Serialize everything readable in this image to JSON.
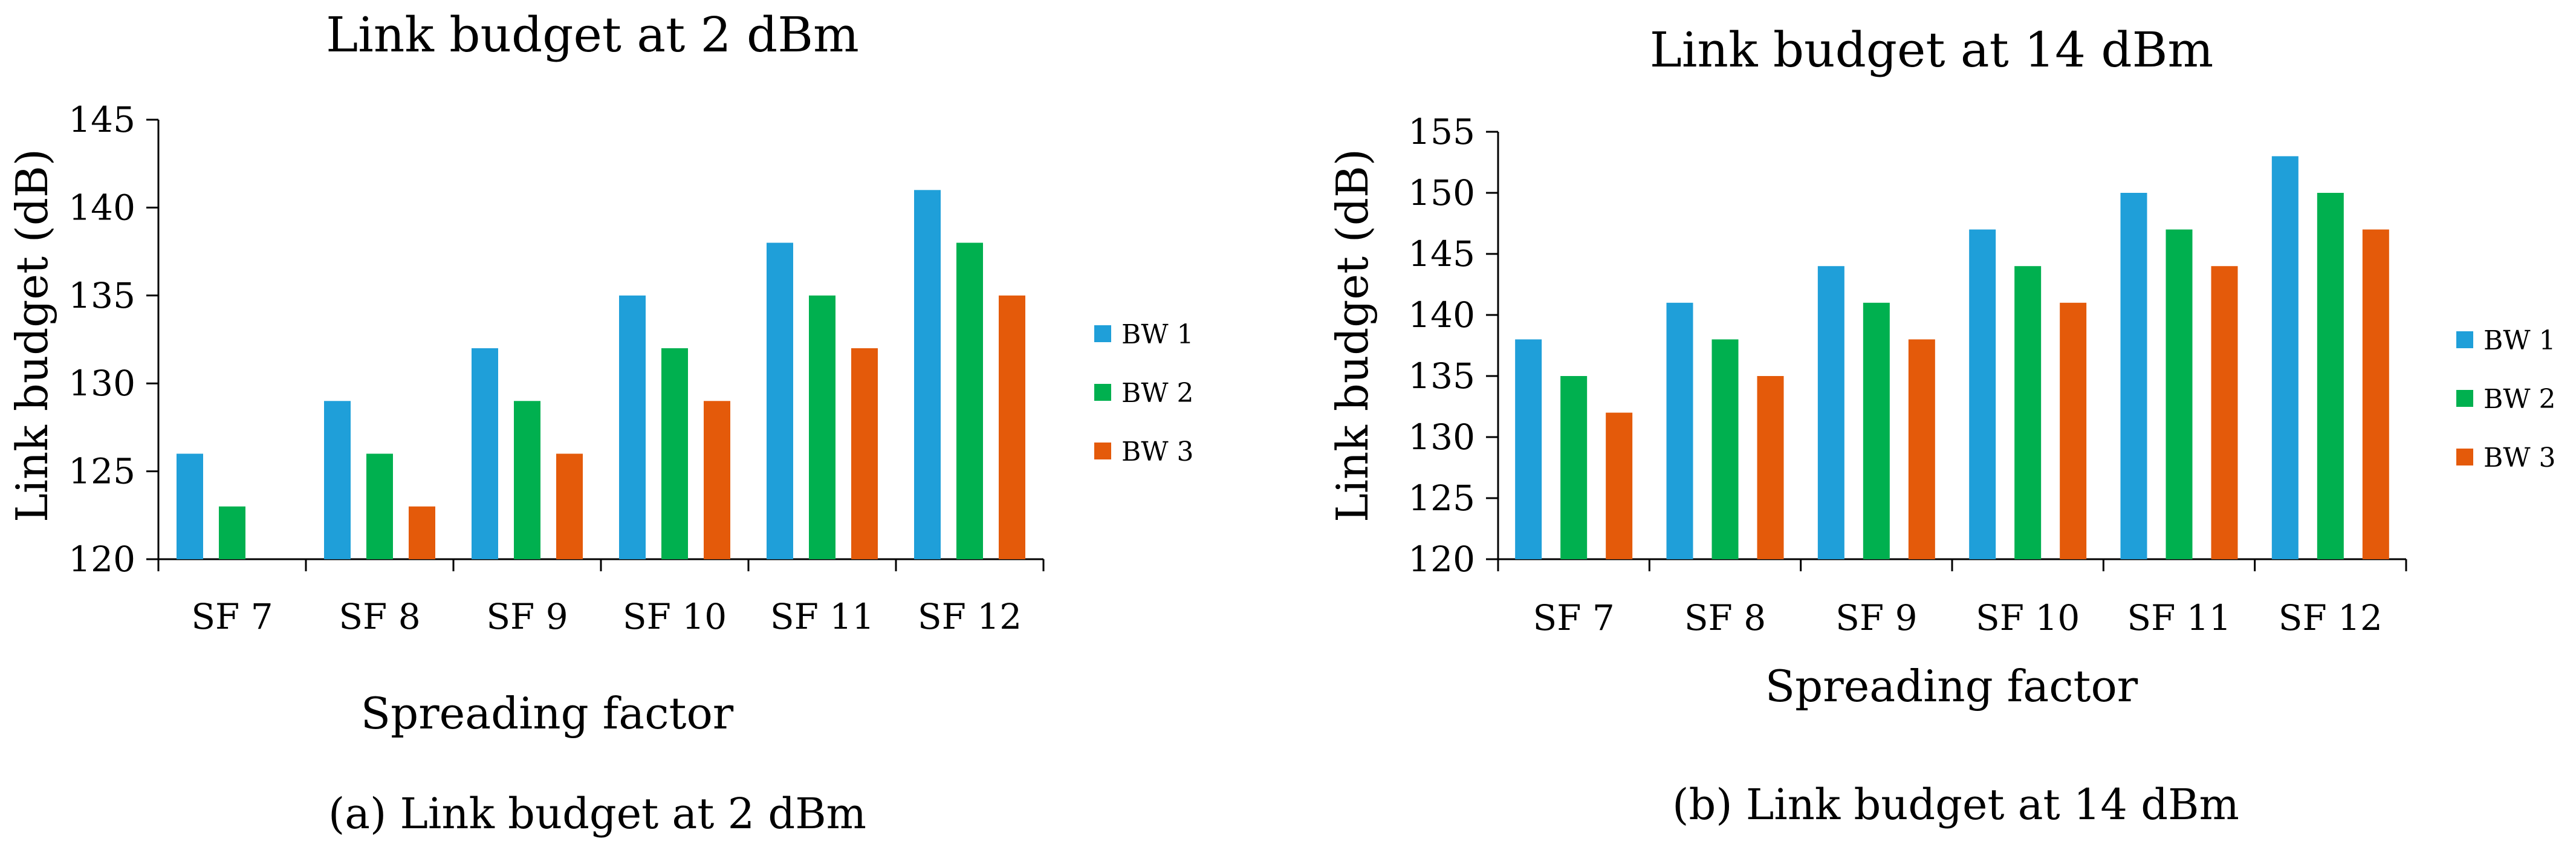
{
  "colors": {
    "BW 1": "#1F9FD9",
    "BW 2": "#00B04F",
    "BW 3": "#E45A0A"
  },
  "chart_data": [
    {
      "type": "bar",
      "title": "Link budget at 2 dBm",
      "caption": "(a) Link budget at 2 dBm",
      "xlabel": "Spreading factor",
      "ylabel": "Link budget (dB)",
      "ylim": [
        120,
        145
      ],
      "yticks": [
        120,
        125,
        130,
        135,
        140,
        145
      ],
      "grid": false,
      "legend_position": "right",
      "categories": [
        "SF 7",
        "SF 8",
        "SF 9",
        "SF 10",
        "SF 11",
        "SF 12"
      ],
      "series": [
        {
          "name": "BW 1",
          "values": [
            126,
            129,
            132,
            135,
            138,
            141
          ]
        },
        {
          "name": "BW 2",
          "values": [
            123,
            126,
            129,
            132,
            135,
            138
          ]
        },
        {
          "name": "BW 3",
          "values": [
            120,
            123,
            126,
            129,
            132,
            135
          ]
        }
      ]
    },
    {
      "type": "bar",
      "title": "Link budget at 14 dBm",
      "caption": "(b) Link budget at 14 dBm",
      "xlabel": "Spreading factor",
      "ylabel": "Link budget (dB)",
      "ylim": [
        120,
        155
      ],
      "yticks": [
        120,
        125,
        130,
        135,
        140,
        145,
        150,
        155
      ],
      "grid": false,
      "legend_position": "right",
      "categories": [
        "SF 7",
        "SF 8",
        "SF 9",
        "SF 10",
        "SF 11",
        "SF 12"
      ],
      "series": [
        {
          "name": "BW 1",
          "values": [
            138,
            141,
            144,
            147,
            150,
            153
          ]
        },
        {
          "name": "BW 2",
          "values": [
            135,
            138,
            141,
            144,
            147,
            150
          ]
        },
        {
          "name": "BW 3",
          "values": [
            132,
            135,
            138,
            141,
            144,
            147
          ]
        }
      ]
    }
  ]
}
